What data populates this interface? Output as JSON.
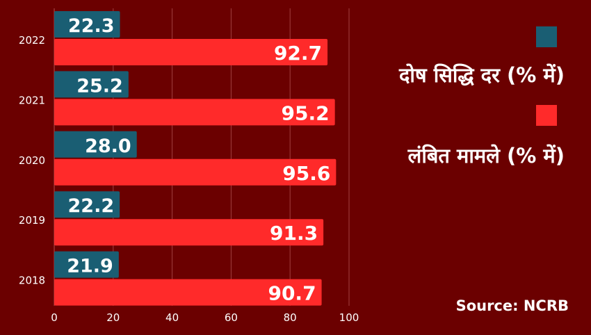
{
  "chart_data": {
    "type": "bar",
    "orientation": "horizontal",
    "categories": [
      "2022",
      "2021",
      "2020",
      "2019",
      "2018"
    ],
    "series": [
      {
        "name": "दोष सिद्धि दर (% में)",
        "values": [
          22.3,
          25.2,
          28.0,
          22.2,
          21.9
        ],
        "color": "#1a5e73"
      },
      {
        "name": "लंबित मामले (% में)",
        "values": [
          92.7,
          95.2,
          95.6,
          91.3,
          90.7
        ],
        "color": "#ff2a2a"
      }
    ],
    "xlim": [
      0,
      100
    ],
    "xticks": [
      "0",
      "20",
      "40",
      "60",
      "80",
      "100"
    ],
    "grid": true,
    "legend_position": "right",
    "background": "#6b0000",
    "value_labels": {
      "2022": [
        "22.3",
        "92.7"
      ],
      "2021": [
        "25.2",
        "95.2"
      ],
      "2020": [
        "28.0",
        "95.6"
      ],
      "2019": [
        "22.2",
        "91.3"
      ],
      "2018": [
        "21.9",
        "90.7"
      ]
    }
  },
  "source": "Source: NCRB"
}
